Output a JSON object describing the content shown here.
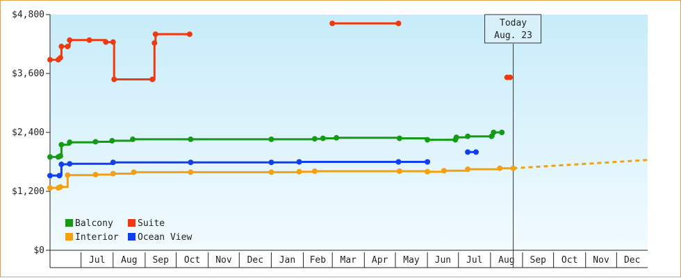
{
  "chart_data": {
    "type": "line",
    "title": "",
    "xlabel": "",
    "ylabel": "",
    "ylim": [
      0,
      4800
    ],
    "y_ticks": [
      "$0",
      "$1,200",
      "$2,400",
      "$3,600",
      "$4,800"
    ],
    "y_tick_values": [
      0,
      1200,
      2400,
      3600,
      4800
    ],
    "x_range": [
      "2024-06-01",
      "2025-12-31"
    ],
    "month_labels": [
      {
        "label": "Jul",
        "date": "2024-07-01"
      },
      {
        "label": "Aug",
        "date": "2024-08-01"
      },
      {
        "label": "Sep",
        "date": "2024-09-01"
      },
      {
        "label": "Oct",
        "date": "2024-10-01"
      },
      {
        "label": "Nov",
        "date": "2024-11-01"
      },
      {
        "label": "Dec",
        "date": "2024-12-01"
      },
      {
        "label": "Jan",
        "date": "2025-01-01"
      },
      {
        "label": "Feb",
        "date": "2025-02-01"
      },
      {
        "label": "Mar",
        "date": "2025-03-01"
      },
      {
        "label": "Apr",
        "date": "2025-04-01"
      },
      {
        "label": "May",
        "date": "2025-05-01"
      },
      {
        "label": "Jun",
        "date": "2025-06-01"
      },
      {
        "label": "Jul",
        "date": "2025-07-01"
      },
      {
        "label": "Aug",
        "date": "2025-08-01"
      },
      {
        "label": "Sep",
        "date": "2025-09-01"
      },
      {
        "label": "Oct",
        "date": "2025-10-01"
      },
      {
        "label": "Nov",
        "date": "2025-11-01"
      },
      {
        "label": "Dec",
        "date": "2025-12-01"
      }
    ],
    "today": {
      "date": "2025-08-23",
      "line1": "Today",
      "line2": "Aug. 23"
    },
    "legend_position": "bottom-left",
    "background": "gradient light blue",
    "series": [
      {
        "name": "Suite",
        "color": "#ee3a10",
        "segments": [
          [
            [
              "2024-06-01",
              3880
            ],
            [
              "2024-06-09",
              3880
            ],
            [
              "2024-06-11",
              3920
            ],
            [
              "2024-06-12",
              4150
            ],
            [
              "2024-06-18",
              4150
            ],
            [
              "2024-06-20",
              4280
            ],
            [
              "2024-07-09",
              4280
            ],
            [
              "2024-07-25",
              4240
            ],
            [
              "2024-08-01",
              4240
            ],
            [
              "2024-08-02",
              3480
            ],
            [
              "2024-09-08",
              3480
            ],
            [
              "2024-09-10",
              4220
            ],
            [
              "2024-09-11",
              4400
            ],
            [
              "2024-10-14",
              4400
            ]
          ],
          [
            [
              "2025-03-01",
              4620
            ],
            [
              "2025-05-04",
              4620
            ]
          ],
          [
            [
              "2025-08-17",
              3520
            ],
            [
              "2025-08-20",
              3520
            ]
          ]
        ]
      },
      {
        "name": "Balcony",
        "color": "#159a16",
        "segments": [
          [
            [
              "2024-06-01",
              1900
            ],
            [
              "2024-06-09",
              1900
            ],
            [
              "2024-06-11",
              1920
            ],
            [
              "2024-06-12",
              2150
            ],
            [
              "2024-06-20",
              2200
            ],
            [
              "2024-07-15",
              2210
            ],
            [
              "2024-07-31",
              2230
            ],
            [
              "2024-08-20",
              2260
            ],
            [
              "2024-10-15",
              2260
            ],
            [
              "2025-01-01",
              2260
            ],
            [
              "2025-02-12",
              2270
            ],
            [
              "2025-02-20",
              2280
            ],
            [
              "2025-03-05",
              2290
            ],
            [
              "2025-05-05",
              2280
            ],
            [
              "2025-06-01",
              2250
            ],
            [
              "2025-06-28",
              2250
            ],
            [
              "2025-06-29",
              2300
            ],
            [
              "2025-07-10",
              2320
            ],
            [
              "2025-08-02",
              2320
            ],
            [
              "2025-08-04",
              2400
            ],
            [
              "2025-08-12",
              2400
            ]
          ]
        ]
      },
      {
        "name": "Ocean View",
        "color": "#1040ee",
        "segments": [
          [
            [
              "2024-06-01",
              1520
            ],
            [
              "2024-06-10",
              1520
            ],
            [
              "2024-06-12",
              1750
            ],
            [
              "2024-06-20",
              1760
            ],
            [
              "2024-08-01",
              1790
            ],
            [
              "2024-10-15",
              1790
            ],
            [
              "2025-01-01",
              1790
            ],
            [
              "2025-01-28",
              1800
            ],
            [
              "2025-05-04",
              1800
            ],
            [
              "2025-06-01",
              1800
            ]
          ],
          [
            [
              "2025-07-10",
              2000
            ],
            [
              "2025-07-18",
              2000
            ]
          ]
        ]
      },
      {
        "name": "Interior",
        "color": "#f5a010",
        "segments": [
          [
            [
              "2024-06-01",
              1270
            ],
            [
              "2024-06-09",
              1270
            ],
            [
              "2024-06-11",
              1290
            ],
            [
              "2024-06-18",
              1530
            ],
            [
              "2024-07-15",
              1540
            ],
            [
              "2024-08-01",
              1560
            ],
            [
              "2024-08-21",
              1590
            ],
            [
              "2024-10-15",
              1590
            ],
            [
              "2025-01-01",
              1590
            ],
            [
              "2025-01-28",
              1600
            ],
            [
              "2025-02-12",
              1610
            ],
            [
              "2025-05-05",
              1610
            ],
            [
              "2025-06-01",
              1600
            ],
            [
              "2025-06-17",
              1620
            ],
            [
              "2025-07-10",
              1650
            ],
            [
              "2025-08-10",
              1670
            ],
            [
              "2025-08-23",
              1670
            ]
          ]
        ],
        "projection": [
          [
            "2025-08-23",
            1670
          ],
          [
            "2025-11-01",
            1760
          ],
          [
            "2025-12-31",
            1840
          ]
        ]
      }
    ],
    "legend": [
      {
        "label": "Balcony",
        "color": "#159a16"
      },
      {
        "label": "Suite",
        "color": "#ee3a10"
      },
      {
        "label": "Interior",
        "color": "#f5a010"
      },
      {
        "label": "Ocean View",
        "color": "#1040ee"
      }
    ]
  }
}
